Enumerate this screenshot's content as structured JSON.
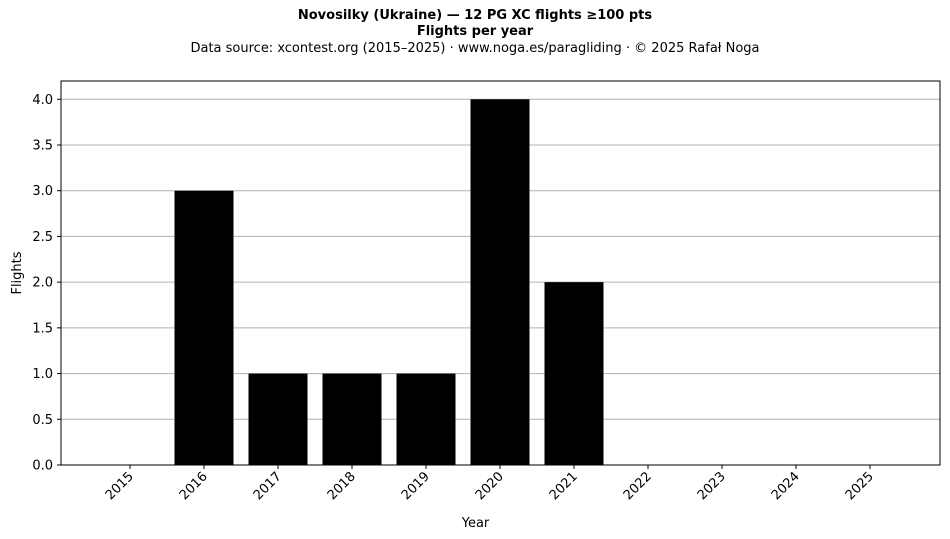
{
  "chart_data": {
    "type": "bar",
    "title": "Novosilky (Ukraine)  —  12 PG XC flights ≥100 pts",
    "subtitle": "Flights per year",
    "source": "Data source: xcontest.org (2015–2025)  ·  www.noga.es/paragliding  ·  © 2025 Rafał Noga",
    "xlabel": "Year",
    "ylabel": "Flights",
    "categories": [
      "2015",
      "2016",
      "2017",
      "2018",
      "2019",
      "2020",
      "2021",
      "2022",
      "2023",
      "2024",
      "2025"
    ],
    "values": [
      0,
      3,
      1,
      1,
      1,
      4,
      2,
      0,
      0,
      0,
      0
    ],
    "ylim": [
      0,
      4.2
    ],
    "yticks": [
      "0.0",
      "0.5",
      "1.0",
      "1.5",
      "2.0",
      "2.5",
      "3.0",
      "3.5",
      "4.0"
    ],
    "grid": "horizontal",
    "bar_color": "#000000",
    "grid_color": "#b0b0b0"
  }
}
